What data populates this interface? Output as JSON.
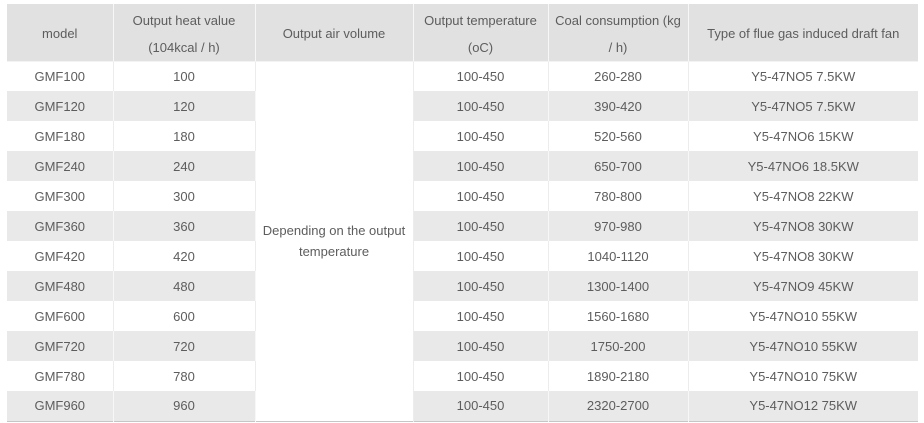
{
  "table": {
    "headers": {
      "model": "model",
      "heat_line1": "Output heat value",
      "heat_line2": "(104kcal / h)",
      "air_volume": "Output air volume",
      "temp_line1": "Output temperature",
      "temp_line2": "(oC)",
      "coal_line1": "Coal consumption (kg",
      "coal_line2": "/ h)",
      "fan": "Type of flue gas induced draft fan"
    },
    "air_volume_note_lines": [
      "Depending on the output",
      "temperature"
    ],
    "rows": [
      {
        "model": "GMF100",
        "heat": "100",
        "temp": "100-450",
        "coal": "260-280",
        "fan": "Y5-47NO5 7.5KW"
      },
      {
        "model": "GMF120",
        "heat": "120",
        "temp": "100-450",
        "coal": "390-420",
        "fan": "Y5-47NO5 7.5KW"
      },
      {
        "model": "GMF180",
        "heat": "180",
        "temp": "100-450",
        "coal": "520-560",
        "fan": "Y5-47NO6 15KW"
      },
      {
        "model": "GMF240",
        "heat": "240",
        "temp": "100-450",
        "coal": "650-700",
        "fan": "Y5-47NO6 18.5KW"
      },
      {
        "model": "GMF300",
        "heat": "300",
        "temp": "100-450",
        "coal": "780-800",
        "fan": "Y5-47NO8 22KW"
      },
      {
        "model": "GMF360",
        "heat": "360",
        "temp": "100-450",
        "coal": "970-980",
        "fan": "Y5-47NO8 30KW"
      },
      {
        "model": "GMF420",
        "heat": "420",
        "temp": "100-450",
        "coal": "1040-1120",
        "fan": "Y5-47NO8 30KW"
      },
      {
        "model": "GMF480",
        "heat": "480",
        "temp": "100-450",
        "coal": "1300-1400",
        "fan": "Y5-47NO9 45KW"
      },
      {
        "model": "GMF600",
        "heat": "600",
        "temp": "100-450",
        "coal": "1560-1680",
        "fan": "Y5-47NO10 55KW"
      },
      {
        "model": "GMF720",
        "heat": "720",
        "temp": "100-450",
        "coal": "1750-200",
        "fan": "Y5-47NO10 55KW"
      },
      {
        "model": "GMF780",
        "heat": "780",
        "temp": "100-450",
        "coal": "1890-2180",
        "fan": "Y5-47NO10 75KW"
      },
      {
        "model": "GMF960",
        "heat": "960",
        "temp": "100-450",
        "coal": "2320-2700",
        "fan": "Y5-47NO12 75KW"
      }
    ]
  },
  "colors": {
    "header_bg": "#e1e1e1",
    "alt_row_bg": "#e9e9e9",
    "row_bg": "#ffffff",
    "text": "#5d5d5d",
    "bottom_border": "#c6c6c6"
  }
}
